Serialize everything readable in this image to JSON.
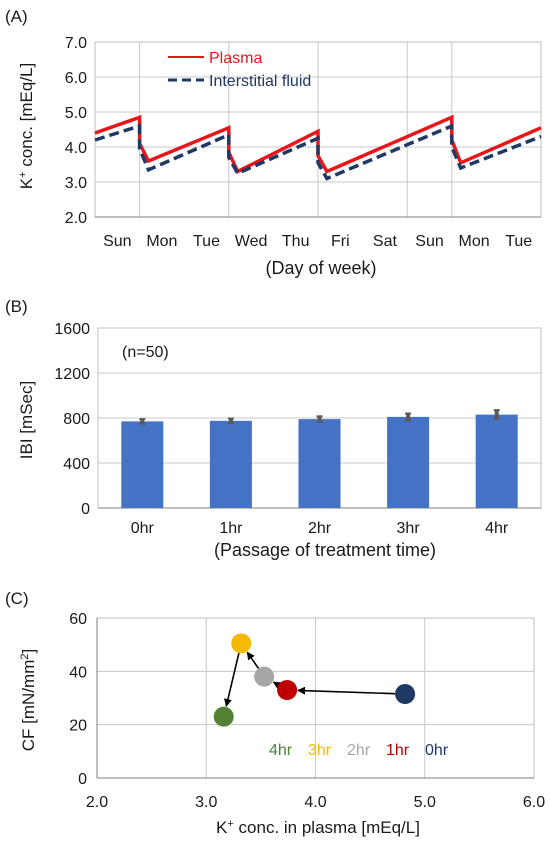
{
  "chart_data": [
    {
      "panel_label": "(A)",
      "type": "line",
      "xlabel": "(Day of week)",
      "ylabel": "K+ conc. [mEq/L]",
      "ylabel_main": "K",
      "ylabel_sup": "+",
      "ylabel_rest": " conc. [mEq/L]",
      "ylim": [
        2.0,
        7.0
      ],
      "yticks": [
        "2.0",
        "3.0",
        "4.0",
        "5.0",
        "6.0",
        "7.0"
      ],
      "xlim": [
        0,
        10
      ],
      "categories": [
        "Sun",
        "Mon",
        "Tue",
        "Wed",
        "Thu",
        "Fri",
        "Sat",
        "Sun",
        "Mon",
        "Tue"
      ],
      "vertical_gridlines_x": [
        1,
        3,
        5,
        7,
        8
      ],
      "grid": true,
      "legend_position": "top-left",
      "series": [
        {
          "name": "Plasma",
          "color": "#e8161b",
          "dash": "solid",
          "points": [
            [
              0,
              4.4
            ],
            [
              1,
              4.85
            ],
            [
              1,
              4.1
            ],
            [
              1.2,
              3.6
            ],
            [
              3,
              4.55
            ],
            [
              3,
              3.85
            ],
            [
              3.2,
              3.3
            ],
            [
              5,
              4.45
            ],
            [
              5,
              3.75
            ],
            [
              5.2,
              3.3
            ],
            [
              8,
              4.85
            ],
            [
              8,
              4.2
            ],
            [
              8.2,
              3.55
            ],
            [
              10,
              4.55
            ]
          ]
        },
        {
          "name": "Interstitial fluid",
          "color": "#1f3864",
          "dash": "dashed",
          "points": [
            [
              0,
              4.2
            ],
            [
              1,
              4.6
            ],
            [
              1,
              3.95
            ],
            [
              1.2,
              3.35
            ],
            [
              3,
              4.35
            ],
            [
              3,
              3.7
            ],
            [
              3.2,
              3.25
            ],
            [
              5,
              4.25
            ],
            [
              5,
              3.55
            ],
            [
              5.2,
              3.1
            ],
            [
              8,
              4.6
            ],
            [
              8,
              4.0
            ],
            [
              8.2,
              3.4
            ],
            [
              10,
              4.3
            ]
          ]
        }
      ]
    },
    {
      "panel_label": "(B)",
      "type": "bar",
      "annotation": "(n=50)",
      "xlabel": "(Passage of treatment time)",
      "ylabel": "IBI [mSec]",
      "ylim": [
        0,
        1600
      ],
      "yticks": [
        "0",
        "400",
        "800",
        "1200",
        "1600"
      ],
      "grid": true,
      "categories": [
        "0hr",
        "1hr",
        "2hr",
        "3hr",
        "4hr"
      ],
      "bar_color": "#4472c4",
      "series": [
        {
          "values": [
            770,
            775,
            790,
            810,
            830
          ],
          "errors": [
            20,
            20,
            25,
            30,
            40
          ]
        }
      ]
    },
    {
      "panel_label": "(C)",
      "type": "scatter",
      "xlabel": "K+ conc. in plasma [mEq/L]",
      "xlabel_main": "K",
      "xlabel_sup": "+",
      "xlabel_rest": " conc. in plasma [mEq/L]",
      "ylabel": "CF [mN/mm2]",
      "ylabel_main": "CF [mN/mm",
      "ylabel_sup": "2",
      "ylabel_rest": "]",
      "xlim": [
        2.0,
        6.0
      ],
      "ylim": [
        0,
        60
      ],
      "xticks": [
        "2.0",
        "3.0",
        "4.0",
        "5.0",
        "6.0"
      ],
      "yticks": [
        "0",
        "20",
        "40",
        "60"
      ],
      "grid": true,
      "points": [
        {
          "label": "0hr",
          "x": 4.82,
          "y": 31.5,
          "color": "#1f3864"
        },
        {
          "label": "1hr",
          "x": 3.74,
          "y": 33,
          "color": "#c00000"
        },
        {
          "label": "2hr",
          "x": 3.53,
          "y": 38,
          "color": "#a6a6a6"
        },
        {
          "label": "3hr",
          "x": 3.32,
          "y": 50.5,
          "color": "#f4b900"
        },
        {
          "label": "4hr",
          "x": 3.16,
          "y": 23,
          "color": "#548235"
        }
      ],
      "legend_order": [
        "4hr",
        "3hr",
        "2hr",
        "1hr",
        "0hr"
      ]
    }
  ]
}
